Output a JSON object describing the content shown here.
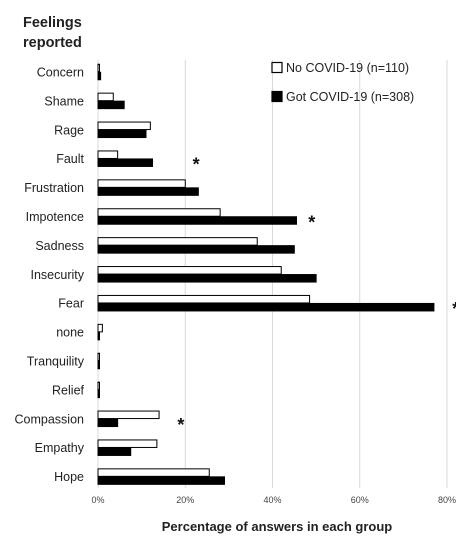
{
  "chart_data": {
    "type": "bar",
    "orientation": "horizontal",
    "category_axis_title_line1": "Feelings",
    "category_axis_title_line2": "reported",
    "xlabel": "Percentage of answers in each group",
    "xlim": [
      0,
      80
    ],
    "xticks": [
      "0%",
      "20%",
      "40%",
      "60%",
      "80%"
    ],
    "grid": "vertical",
    "legend_position": "top-right",
    "categories": [
      "Concern",
      "Shame",
      "Rage",
      "Fault",
      "Frustration",
      "Impotence",
      "Sadness",
      "Insecurity",
      "Fear",
      "none",
      "Tranquility",
      "Relief",
      "Compassion",
      "Empathy",
      "Hope"
    ],
    "series": [
      {
        "name": "No COVID-19 (n=110)",
        "fill": "#ffffff",
        "stroke": "#000000",
        "values": [
          0,
          3.5,
          12,
          4.5,
          20,
          28,
          36.5,
          42,
          48.5,
          1,
          0.3,
          0.3,
          14,
          13.5,
          25.5
        ]
      },
      {
        "name": "Got COVID-19 (n=308)",
        "fill": "#000000",
        "stroke": "#000000",
        "values": [
          0.6,
          6,
          11,
          12.5,
          23,
          45.5,
          45,
          50,
          77,
          0.3,
          0.3,
          0.3,
          4.5,
          7.5,
          29
        ]
      }
    ],
    "significance_marker": "*",
    "significant": [
      {
        "category": "Fault",
        "x": 22.5
      },
      {
        "category": "Impotence",
        "x": 49
      },
      {
        "category": "Fear",
        "x": 82
      },
      {
        "category": "Compassion",
        "x": 19
      }
    ]
  }
}
